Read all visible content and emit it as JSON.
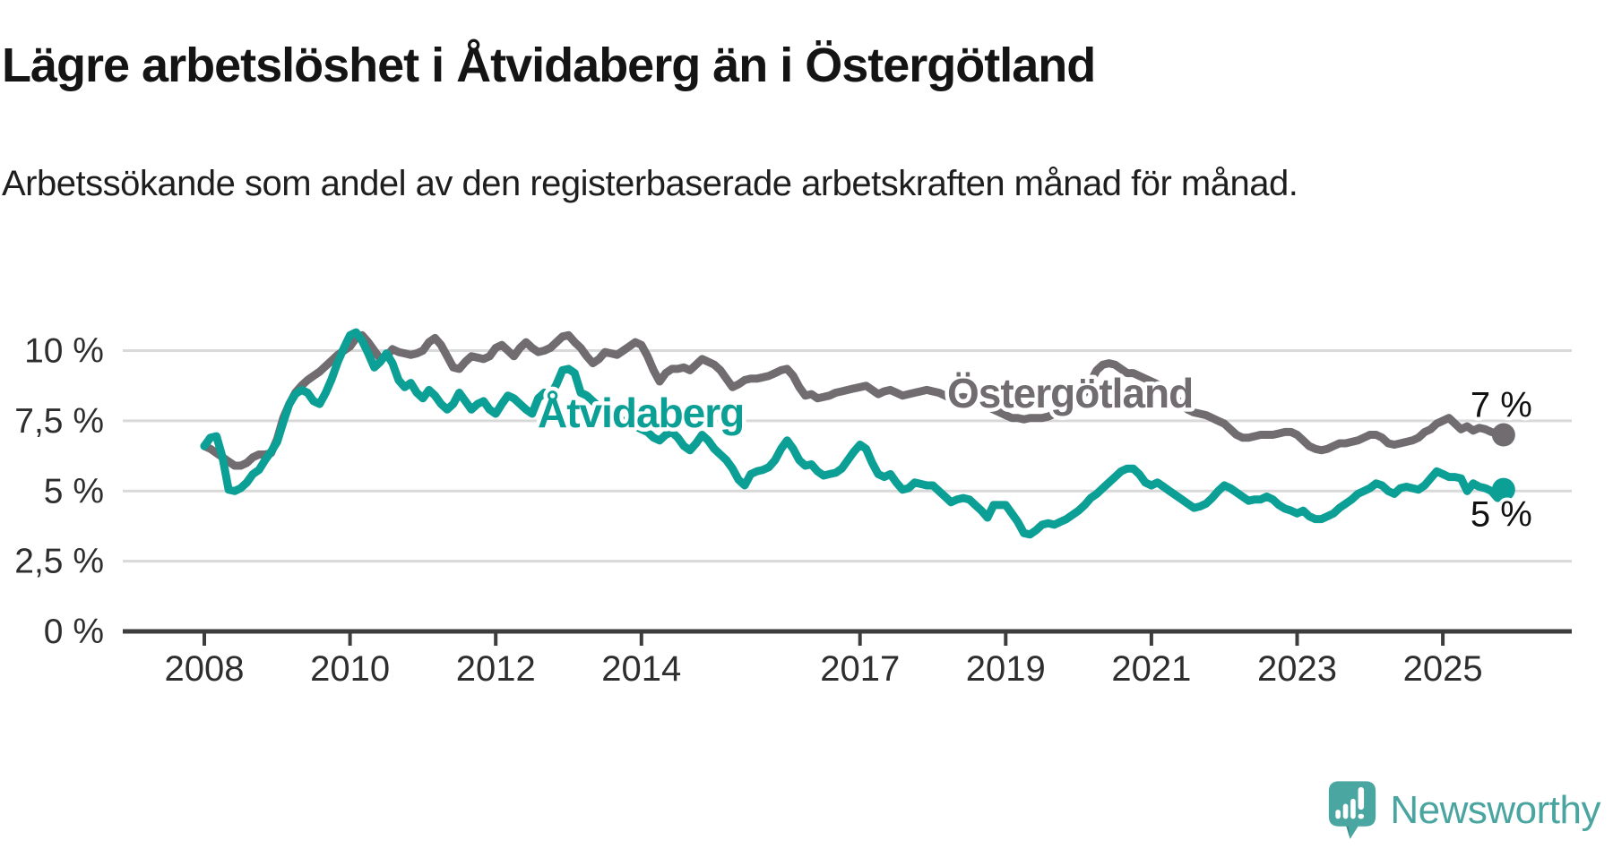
{
  "header": {
    "title": "Lägre arbetslöshet i Åtvidaberg än i Östergötland",
    "subtitle": "Arbetssökande som andel av den registerbaserade arbetskraften månad för månad."
  },
  "footer": {
    "brand": "Newsworthy"
  },
  "colors": {
    "atvidaberg": "#0b9f95",
    "ostergotland": "#706c70",
    "grid": "#d9d9d9",
    "axis": "#3d3d3d",
    "tick_label": "#2e2e2e",
    "end_label": "#111111",
    "brand_teal": "#4aa5a1"
  },
  "chart_data": {
    "type": "line",
    "unit": "%",
    "x_range": [
      "2008-01",
      "2025-11"
    ],
    "points_per_year": 12,
    "start_year": 2008,
    "ylim": [
      0,
      11.5
    ],
    "grid": true,
    "legend_position": "inline-labels",
    "y_ticks": [
      {
        "value": 0,
        "label": "0 %"
      },
      {
        "value": 2.5,
        "label": "2,5 %"
      },
      {
        "value": 5,
        "label": "5 %"
      },
      {
        "value": 7.5,
        "label": "7,5 %"
      },
      {
        "value": 10,
        "label": "10 %"
      }
    ],
    "x_ticks": [
      {
        "year": 2008,
        "label": "2008"
      },
      {
        "year": 2010,
        "label": "2010"
      },
      {
        "year": 2012,
        "label": "2012"
      },
      {
        "year": 2014,
        "label": "2014"
      },
      {
        "year": 2017,
        "label": "2017"
      },
      {
        "year": 2019,
        "label": "2019"
      },
      {
        "year": 2021,
        "label": "2021"
      },
      {
        "year": 2023,
        "label": "2023"
      },
      {
        "year": 2025,
        "label": "2025"
      }
    ],
    "series": [
      {
        "name": "Åtvidaberg",
        "color": "#0b9f95",
        "end_label": "5 %",
        "values": [
          6.6,
          6.9,
          6.95,
          6.2,
          5.05,
          5.0,
          5.1,
          5.3,
          5.6,
          5.75,
          6.1,
          6.4,
          6.75,
          7.45,
          8.1,
          8.45,
          8.6,
          8.5,
          8.2,
          8.1,
          8.5,
          9.0,
          9.6,
          10.1,
          10.55,
          10.65,
          10.35,
          9.9,
          9.4,
          9.6,
          9.9,
          9.55,
          8.95,
          8.7,
          8.85,
          8.5,
          8.3,
          8.6,
          8.4,
          8.1,
          7.9,
          8.1,
          8.5,
          8.2,
          7.9,
          8.1,
          8.2,
          7.9,
          7.75,
          8.1,
          8.4,
          8.3,
          8.1,
          7.9,
          7.75,
          8.3,
          8.5,
          8.4,
          8.8,
          9.3,
          9.35,
          9.2,
          8.5,
          8.4,
          8.2,
          8.0,
          7.9,
          7.8,
          7.6,
          7.5,
          7.4,
          7.3,
          7.2,
          7.1,
          6.9,
          6.8,
          7.0,
          7.1,
          6.9,
          6.6,
          6.45,
          6.7,
          7.0,
          6.8,
          6.5,
          6.3,
          6.1,
          5.8,
          5.4,
          5.2,
          5.6,
          5.7,
          5.75,
          5.85,
          6.1,
          6.5,
          6.8,
          6.5,
          6.1,
          5.9,
          5.95,
          5.7,
          5.55,
          5.6,
          5.65,
          5.8,
          6.1,
          6.4,
          6.65,
          6.5,
          6.0,
          5.6,
          5.5,
          5.6,
          5.3,
          5.05,
          5.1,
          5.3,
          5.25,
          5.2,
          5.2,
          5.0,
          4.8,
          4.6,
          4.7,
          4.75,
          4.7,
          4.5,
          4.3,
          4.05,
          4.5,
          4.5,
          4.5,
          4.2,
          3.9,
          3.5,
          3.45,
          3.6,
          3.8,
          3.85,
          3.8,
          3.9,
          4.0,
          4.15,
          4.3,
          4.5,
          4.75,
          4.9,
          5.1,
          5.3,
          5.5,
          5.7,
          5.8,
          5.8,
          5.6,
          5.3,
          5.2,
          5.3,
          5.15,
          5.0,
          4.85,
          4.7,
          4.55,
          4.4,
          4.45,
          4.55,
          4.75,
          5.0,
          5.2,
          5.1,
          4.95,
          4.8,
          4.65,
          4.7,
          4.7,
          4.8,
          4.7,
          4.5,
          4.37,
          4.3,
          4.2,
          4.3,
          4.1,
          4.0,
          4.0,
          4.1,
          4.2,
          4.4,
          4.55,
          4.7,
          4.9,
          5.0,
          5.1,
          5.27,
          5.2,
          5.0,
          4.9,
          5.1,
          5.15,
          5.1,
          5.05,
          5.2,
          5.45,
          5.7,
          5.6,
          5.5,
          5.5,
          5.45,
          5.0,
          5.27,
          5.15,
          5.1,
          5.0,
          4.75,
          5.05
        ]
      },
      {
        "name": "Östergötland",
        "color": "#706c70",
        "end_label": "7 %",
        "values": [
          6.6,
          6.5,
          6.35,
          6.2,
          6.05,
          5.9,
          5.9,
          6.0,
          6.2,
          6.3,
          6.3,
          6.35,
          6.85,
          7.6,
          8.1,
          8.5,
          8.75,
          8.95,
          9.1,
          9.25,
          9.45,
          9.65,
          9.85,
          10.0,
          10.15,
          10.45,
          10.55,
          10.3,
          10.0,
          9.7,
          9.8,
          10.05,
          9.95,
          9.9,
          9.85,
          9.9,
          10.0,
          10.3,
          10.45,
          10.2,
          9.8,
          9.4,
          9.35,
          9.6,
          9.8,
          9.75,
          9.7,
          9.8,
          10.1,
          10.2,
          10.0,
          9.8,
          10.1,
          10.3,
          10.1,
          9.95,
          10.0,
          10.1,
          10.3,
          10.5,
          10.55,
          10.3,
          10.1,
          9.8,
          9.55,
          9.7,
          9.95,
          9.9,
          9.85,
          10.0,
          10.15,
          10.3,
          10.2,
          9.8,
          9.3,
          8.9,
          9.2,
          9.35,
          9.35,
          9.4,
          9.3,
          9.5,
          9.7,
          9.6,
          9.5,
          9.3,
          9.0,
          8.7,
          8.8,
          8.95,
          9.0,
          9.0,
          9.05,
          9.1,
          9.2,
          9.3,
          9.35,
          9.1,
          8.7,
          8.4,
          8.45,
          8.3,
          8.35,
          8.4,
          8.5,
          8.55,
          8.6,
          8.65,
          8.7,
          8.75,
          8.6,
          8.45,
          8.55,
          8.6,
          8.5,
          8.4,
          8.45,
          8.5,
          8.55,
          8.6,
          8.55,
          8.5,
          8.4,
          8.3,
          8.3,
          8.35,
          8.3,
          8.2,
          8.1,
          8.0,
          7.9,
          7.8,
          7.7,
          7.6,
          7.6,
          7.55,
          7.6,
          7.6,
          7.6,
          7.65,
          7.75,
          7.85,
          8.0,
          8.2,
          8.4,
          8.5,
          8.9,
          9.3,
          9.5,
          9.55,
          9.5,
          9.35,
          9.2,
          9.2,
          9.1,
          9.0,
          8.9,
          8.8,
          8.7,
          8.5,
          8.3,
          8.1,
          7.9,
          7.8,
          7.75,
          7.7,
          7.6,
          7.5,
          7.4,
          7.2,
          7.0,
          6.9,
          6.9,
          6.95,
          7.0,
          7.0,
          7.0,
          7.05,
          7.1,
          7.1,
          7.0,
          6.8,
          6.6,
          6.5,
          6.45,
          6.5,
          6.6,
          6.7,
          6.7,
          6.75,
          6.8,
          6.9,
          7.0,
          7.0,
          6.9,
          6.7,
          6.65,
          6.7,
          6.75,
          6.8,
          6.9,
          7.1,
          7.2,
          7.4,
          7.5,
          7.6,
          7.4,
          7.2,
          7.3,
          7.15,
          7.25,
          7.2,
          7.1,
          7.05,
          7.0
        ]
      }
    ]
  }
}
